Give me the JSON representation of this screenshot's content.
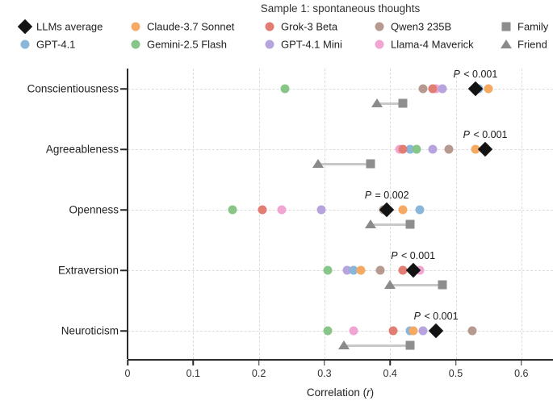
{
  "chart_data": {
    "type": "scatter",
    "title": "Sample 1: spontaneous thoughts",
    "xlabel": "Correlation (r)",
    "xlabel_parts": {
      "prefix": "Correlation (",
      "italic": "r",
      "suffix": ")"
    },
    "xlim": [
      0,
      0.65
    ],
    "grid": "dashed",
    "legend_position": "top",
    "xticks": [
      {
        "value": 0,
        "label": "0"
      },
      {
        "value": 0.1,
        "label": "0.1"
      },
      {
        "value": 0.2,
        "label": "0.2"
      },
      {
        "value": 0.3,
        "label": "0.3"
      },
      {
        "value": 0.4,
        "label": "0.4"
      },
      {
        "value": 0.5,
        "label": "0.5"
      },
      {
        "value": 0.6,
        "label": "0.6"
      }
    ],
    "categories": [
      "Conscientiousness",
      "Agreeableness",
      "Openness",
      "Extraversion",
      "Neuroticism"
    ],
    "series": [
      {
        "name": "LLMs average",
        "marker": "diamond",
        "color": "#131313",
        "values": [
          0.53,
          0.545,
          0.395,
          0.435,
          0.47
        ]
      },
      {
        "name": "GPT-4.1",
        "marker": "circle",
        "color": "#8ab6d9",
        "values": [
          0.535,
          0.43,
          0.445,
          0.345,
          0.43
        ]
      },
      {
        "name": "Claude-3.7 Sonnet",
        "marker": "circle",
        "color": "#f5a962",
        "values": [
          0.55,
          0.53,
          0.42,
          0.355,
          0.435
        ]
      },
      {
        "name": "Gemini-2.5 Flash",
        "marker": "circle",
        "color": "#88c588",
        "values": [
          0.24,
          0.44,
          0.16,
          0.305,
          0.305
        ]
      },
      {
        "name": "Grok-3 Beta",
        "marker": "circle",
        "color": "#e27d74",
        "values": [
          0.465,
          0.42,
          0.205,
          0.42,
          0.405
        ]
      },
      {
        "name": "GPT-4.1 Mini",
        "marker": "circle",
        "color": "#b7a4de",
        "values": [
          0.48,
          0.465,
          0.295,
          0.335,
          0.45
        ]
      },
      {
        "name": "Qwen3 235B",
        "marker": "circle",
        "color": "#b69a90",
        "values": [
          0.45,
          0.49,
          0.39,
          0.385,
          0.525
        ]
      },
      {
        "name": "Llama-4 Maverick",
        "marker": "circle",
        "color": "#f0a5d2",
        "values": [
          0.47,
          0.415,
          0.235,
          0.445,
          0.345
        ]
      },
      {
        "name": "Family",
        "marker": "square",
        "color": "#8e8e8e",
        "values": [
          0.42,
          0.37,
          0.43,
          0.48,
          0.43
        ]
      },
      {
        "name": "Friend",
        "marker": "triangle",
        "color": "#8a8a8a",
        "values": [
          0.38,
          0.29,
          0.37,
          0.4,
          0.33
        ]
      }
    ],
    "p_labels": [
      {
        "category": "Conscientiousness",
        "text": "P < 0.001",
        "x": 0.53
      },
      {
        "category": "Agreeableness",
        "text": "P < 0.001",
        "x": 0.545
      },
      {
        "category": "Openness",
        "text": "P = 0.002",
        "x": 0.395
      },
      {
        "category": "Extraversion",
        "text": "P < 0.001",
        "x": 0.435
      },
      {
        "category": "Neuroticism",
        "text": "P < 0.001",
        "x": 0.47
      }
    ]
  }
}
